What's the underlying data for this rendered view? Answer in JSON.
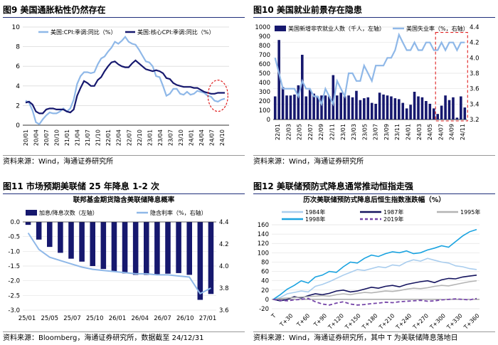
{
  "chart_data": [
    {
      "type": "line",
      "title": "图9 美国通胀粘性仍然存在",
      "source": "资料来源：Wind，海通证券研究所",
      "x_ticks": [
        "20/01",
        "20/04",
        "20/07",
        "20/10",
        "21/01",
        "21/04",
        "21/07",
        "21/10",
        "22/01",
        "22/04",
        "22/07",
        "22/10",
        "23/01",
        "23/04",
        "23/07",
        "23/10",
        "24/01",
        "24/04",
        "24/07",
        "24/10"
      ],
      "ylim": [
        0,
        10
      ],
      "y_ticks": [
        "0",
        "2",
        "4",
        "6",
        "8",
        "10"
      ],
      "legend": [
        "美国:CPI:季调:同比（%）",
        "美国:核心CPI:季调:同比（%）"
      ],
      "series": [
        {
          "name": "美国:CPI:季调:同比（%）",
          "color": "#8fb8e8",
          "values": [
            2.5,
            2.3,
            1.5,
            0.3,
            0.1,
            0.6,
            1.0,
            1.3,
            1.2,
            1.2,
            1.4,
            1.7,
            1.4,
            1.7,
            2.6,
            4.2,
            5.0,
            5.4,
            5.4,
            5.3,
            5.4,
            6.2,
            6.8,
            7.0,
            7.5,
            7.9,
            8.5,
            8.3,
            8.6,
            9.0,
            8.5,
            8.3,
            8.2,
            7.7,
            7.1,
            6.5,
            6.4,
            6.0,
            5.0,
            4.9,
            4.0,
            3.0,
            3.2,
            3.7,
            3.7,
            3.2,
            3.1,
            3.4,
            3.1,
            3.2,
            3.5,
            3.4,
            3.3,
            3.0,
            2.9,
            2.5,
            2.4,
            2.6,
            2.7
          ]
        },
        {
          "name": "美国:核心CPI:季调:同比（%）",
          "color": "#16186e",
          "values": [
            2.3,
            2.4,
            2.1,
            1.4,
            1.2,
            1.2,
            1.6,
            1.7,
            1.7,
            1.6,
            1.6,
            1.6,
            1.4,
            1.3,
            1.6,
            3.0,
            3.8,
            4.5,
            4.3,
            4.0,
            4.0,
            4.6,
            4.9,
            5.5,
            6.0,
            6.4,
            6.5,
            6.2,
            6.0,
            5.9,
            5.9,
            6.3,
            6.6,
            6.3,
            6.0,
            5.7,
            5.6,
            5.5,
            5.6,
            5.5,
            5.3,
            4.8,
            4.7,
            4.3,
            4.1,
            4.0,
            3.9,
            3.9,
            3.9,
            3.8,
            3.8,
            3.6,
            3.4,
            3.3,
            3.2,
            3.2,
            3.3,
            3.3,
            3.3
          ]
        }
      ]
    },
    {
      "type": "bar+line",
      "title": "图10 美国就业前景存在隐患",
      "source": "资料来源：Wind，海通证券研究所",
      "x_ticks": [
        "22/01",
        "22/03",
        "22/05",
        "22/07",
        "22/09",
        "22/11",
        "23/01",
        "23/03",
        "23/05",
        "23/07",
        "23/09",
        "23/11",
        "24/01",
        "24/03",
        "24/05",
        "24/07",
        "24/09",
        "24/11"
      ],
      "left_ylim": [
        0,
        1000
      ],
      "left_ticks": [
        "0",
        "100",
        "200",
        "300",
        "400",
        "500",
        "600",
        "700",
        "800",
        "900",
        "1000"
      ],
      "right_ylim": [
        3.2,
        4.4
      ],
      "right_ticks": [
        "3.2",
        "3.4",
        "3.6",
        "3.8",
        "4.0",
        "4.2",
        "4.4"
      ],
      "legend": [
        "美国新增非农就业人数（千人，左轴）",
        "美国失业率（%，右轴）"
      ],
      "bars": {
        "name": "美国新增非农就业人数（千人，左轴）",
        "color": "#16186e",
        "values": [
          250,
          860,
          350,
          260,
          260,
          270,
          370,
          700,
          250,
          320,
          280,
          250,
          260,
          260,
          250,
          480,
          260,
          290,
          250,
          260,
          240,
          310,
          210,
          230,
          240,
          180,
          170,
          290,
          270,
          260,
          250,
          230,
          220,
          180,
          120,
          160,
          300,
          250,
          240,
          200,
          170,
          120,
          60,
          150,
          260,
          210,
          240,
          20,
          250,
          130
        ]
      },
      "line": {
        "name": "美国失业率（%，右轴）",
        "color": "#8fb8e8",
        "values": [
          4.0,
          3.8,
          3.6,
          3.6,
          3.6,
          3.6,
          3.5,
          3.7,
          3.6,
          3.6,
          3.5,
          3.5,
          3.4,
          3.6,
          3.5,
          3.4,
          3.7,
          3.6,
          3.5,
          3.8,
          3.8,
          3.7,
          3.7,
          3.9,
          3.8,
          3.7,
          3.9,
          3.9,
          3.9,
          4.0,
          4.0,
          4.1,
          4.3,
          4.2,
          4.1,
          4.1,
          4.2,
          4.1,
          4.1,
          4.2,
          4.2,
          4.1,
          4.1,
          4.2,
          4.1,
          4.2,
          4.2,
          4.1,
          4.2,
          4.2
        ]
      }
    },
    {
      "type": "bar+line",
      "title": "图11 市场预期美联储 25 年降息 1-2 次",
      "subtitle": "联邦基金期货隐含美联储降息概率",
      "source": "资料来源：Bloomberg，海通证券研究所，数据截至 24/12/31",
      "x_ticks": [
        "25/01",
        "25/05",
        "25/07",
        "25/10",
        "26/01",
        "26/04",
        "26/07",
        "26/10",
        "27/01"
      ],
      "left_ylim": [
        -3.0,
        0.0
      ],
      "left_ticks": [
        "0.0",
        "-0.5",
        "-1.0",
        "-1.5",
        "-2.0",
        "-2.5",
        "-3.0"
      ],
      "right_ylim": [
        3.6,
        4.4
      ],
      "right_ticks": [
        "4.4",
        "4.2",
        "4.0",
        "3.8",
        "3.6"
      ],
      "legend": [
        "加息/降息次数（左轴）",
        "隐含利率（%，右轴）"
      ],
      "bars": {
        "name": "加息/降息次数（左轴）",
        "color": "#16186e",
        "values": [
          -0.1,
          -0.6,
          -0.85,
          -1.05,
          -1.25,
          -1.35,
          -1.5,
          -1.6,
          -1.7,
          -1.75,
          -1.8,
          -1.8,
          -1.78,
          -1.76,
          -1.74,
          -1.8,
          -2.65,
          -2.45
        ]
      },
      "line": {
        "name": "隐含利率（%，右轴）",
        "color": "#8fb8e8",
        "values": [
          4.3,
          4.15,
          4.08,
          4.05,
          4.02,
          3.99,
          3.97,
          3.96,
          3.95,
          3.94,
          3.93,
          3.93,
          3.92,
          3.92,
          3.91,
          3.9,
          3.75,
          3.8
        ]
      }
    },
    {
      "type": "line",
      "title": "图12 美联储预防式降息通常推动恒指走强",
      "subtitle": "历次美联储预防式降息后恒生指数涨跌幅（%）",
      "source": "资料来源：Wind，海通证券研究所，其中 T 为美联储降息落地日",
      "x_ticks": [
        "T",
        "T+30",
        "T+60",
        "T+90",
        "T+120",
        "T+150",
        "T+180",
        "T+210",
        "T+240",
        "T+270",
        "T+300",
        "T+330",
        "T+360"
      ],
      "ylim": [
        -20,
        160
      ],
      "y_ticks": [
        "160",
        "140",
        "120",
        "100",
        "80",
        "60",
        "40",
        "20",
        "0",
        "-20"
      ],
      "legend": [
        "1984年",
        "1987年",
        "1995年",
        "1998年",
        "2019年"
      ],
      "series": [
        {
          "name": "1984年",
          "color": "#a9cdee",
          "dash": false,
          "values": [
            0,
            4,
            12,
            15,
            18,
            16,
            28,
            32,
            38,
            45,
            52,
            58,
            64,
            62,
            66,
            70,
            68,
            74,
            72,
            80,
            85,
            82,
            88,
            84,
            80,
            78,
            72,
            70,
            66,
            64
          ]
        },
        {
          "name": "1987年",
          "color": "#14135e",
          "dash": false,
          "values": [
            0,
            -3,
            0,
            6,
            3,
            8,
            12,
            10,
            13,
            18,
            20,
            16,
            18,
            22,
            26,
            24,
            28,
            30,
            27,
            32,
            35,
            38,
            40,
            36,
            42,
            45,
            44,
            48,
            50,
            52
          ]
        },
        {
          "name": "1995年",
          "color": "#b4b4b4",
          "dash": false,
          "values": [
            0,
            2,
            3,
            4,
            5,
            6,
            7,
            8,
            7,
            10,
            12,
            10,
            13,
            15,
            14,
            16,
            18,
            17,
            19,
            22,
            24,
            23,
            25,
            28,
            30,
            29,
            32,
            35,
            38,
            40
          ]
        },
        {
          "name": "1998年",
          "color": "#1aa3e0",
          "dash": false,
          "values": [
            0,
            10,
            22,
            30,
            40,
            35,
            48,
            52,
            60,
            58,
            70,
            80,
            78,
            88,
            95,
            92,
            98,
            102,
            100,
            104,
            98,
            100,
            106,
            110,
            115,
            112,
            124,
            136,
            145,
            150
          ]
        },
        {
          "name": "2019年",
          "color": "#7545a8",
          "dash": true,
          "values": [
            0,
            -2,
            -3,
            -1,
            0,
            2,
            -5,
            -10,
            -12,
            -8,
            -5,
            -10,
            -12,
            -11,
            -9,
            -8,
            -6,
            -7,
            -5,
            -4,
            -3,
            -2,
            -4,
            -3,
            -1,
            0,
            1,
            0,
            -1,
            2
          ]
        }
      ]
    }
  ]
}
